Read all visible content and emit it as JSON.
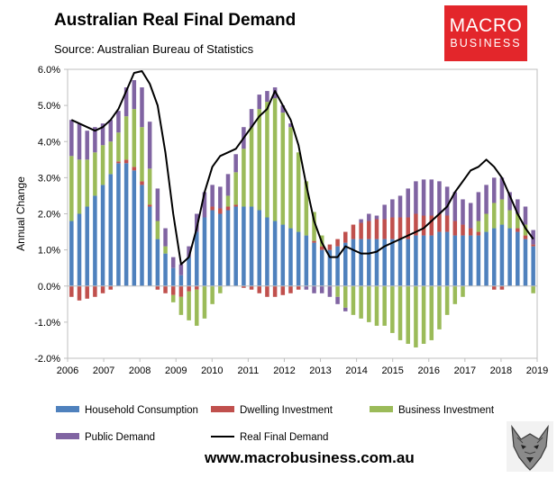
{
  "header": {
    "title": "Australian Real Final Demand",
    "subtitle": "Source: Australian Bureau of Statistics"
  },
  "logo": {
    "line1": "MACRO",
    "line2": "BUSINESS",
    "color": "#e3262b"
  },
  "footer": {
    "url": "www.macrobusiness.com.au"
  },
  "wolf_icon": "wolf-head-icon",
  "chart_data": {
    "type": "bar",
    "stacked": true,
    "title": "Australian Real Final Demand",
    "xlabel": "",
    "ylabel": "Annual Change",
    "ylim": [
      -2.0,
      6.0
    ],
    "yticks": [
      "-2.0%",
      "-1.0%",
      "0.0%",
      "1.0%",
      "2.0%",
      "3.0%",
      "4.0%",
      "5.0%",
      "6.0%"
    ],
    "xticks": [
      "2006",
      "2007",
      "2008",
      "2009",
      "2010",
      "2011",
      "2012",
      "2013",
      "2014",
      "2015",
      "2016",
      "2017",
      "2018",
      "2019"
    ],
    "x_start": 2006.0,
    "x_end": 2019.0,
    "grid": false,
    "legend_position": "bottom",
    "series": [
      {
        "name": "Household Consumption",
        "color": "#4f81bd",
        "kind": "bar",
        "values": [
          1.8,
          2.0,
          2.2,
          2.5,
          2.8,
          3.1,
          3.4,
          3.4,
          3.2,
          2.8,
          2.2,
          1.3,
          0.9,
          0.5,
          0.3,
          0.8,
          1.5,
          1.9,
          2.1,
          2.0,
          2.1,
          2.2,
          2.2,
          2.2,
          2.1,
          1.9,
          1.8,
          1.7,
          1.6,
          1.5,
          1.4,
          1.2,
          1.0,
          1.0,
          1.1,
          1.2,
          1.3,
          1.3,
          1.3,
          1.3,
          1.3,
          1.3,
          1.3,
          1.3,
          1.4,
          1.4,
          1.4,
          1.5,
          1.5,
          1.4,
          1.4,
          1.4,
          1.4,
          1.5,
          1.6,
          1.7,
          1.6,
          1.5,
          1.3,
          1.1
        ]
      },
      {
        "name": "Dwelling Investment",
        "color": "#c0504d",
        "kind": "bar",
        "values": [
          -0.3,
          -0.4,
          -0.35,
          -0.3,
          -0.2,
          -0.1,
          0.05,
          0.1,
          0.1,
          0.1,
          0.05,
          -0.1,
          -0.2,
          -0.25,
          -0.3,
          -0.15,
          -0.1,
          0.0,
          0.1,
          0.15,
          0.1,
          0.05,
          -0.05,
          -0.1,
          -0.2,
          -0.3,
          -0.3,
          -0.25,
          -0.2,
          -0.1,
          0.0,
          0.05,
          0.1,
          0.15,
          0.2,
          0.3,
          0.4,
          0.45,
          0.5,
          0.55,
          0.55,
          0.6,
          0.6,
          0.6,
          0.6,
          0.55,
          0.55,
          0.5,
          0.45,
          0.4,
          0.3,
          0.2,
          0.1,
          0.0,
          -0.1,
          -0.1,
          0.0,
          0.1,
          0.1,
          0.05
        ]
      },
      {
        "name": "Business Investment",
        "color": "#9bbb59",
        "kind": "bar",
        "values": [
          1.8,
          1.5,
          1.3,
          1.2,
          1.1,
          0.9,
          0.8,
          1.2,
          1.6,
          1.5,
          1.0,
          0.5,
          0.2,
          -0.2,
          -0.5,
          -0.8,
          -1.0,
          -0.9,
          -0.5,
          -0.2,
          0.3,
          0.9,
          1.6,
          2.2,
          2.8,
          3.2,
          3.4,
          3.1,
          2.8,
          2.2,
          1.5,
          0.8,
          0.3,
          0.0,
          -0.3,
          -0.6,
          -0.8,
          -0.9,
          -1.0,
          -1.1,
          -1.1,
          -1.3,
          -1.5,
          -1.6,
          -1.7,
          -1.6,
          -1.5,
          -1.2,
          -0.8,
          -0.5,
          -0.3,
          0.0,
          0.3,
          0.5,
          0.7,
          0.7,
          0.5,
          0.4,
          0.3,
          -0.2
        ]
      },
      {
        "name": "Public Demand",
        "color": "#8064a2",
        "kind": "bar",
        "values": [
          1.0,
          1.0,
          0.8,
          0.7,
          0.6,
          0.6,
          0.6,
          0.8,
          0.8,
          1.1,
          1.3,
          0.9,
          0.5,
          0.3,
          0.3,
          0.3,
          0.5,
          0.7,
          0.6,
          0.6,
          0.6,
          0.5,
          0.6,
          0.5,
          0.4,
          0.3,
          0.3,
          0.2,
          0.1,
          0.0,
          -0.1,
          -0.2,
          -0.2,
          -0.3,
          -0.2,
          -0.1,
          0.0,
          0.1,
          0.2,
          0.1,
          0.4,
          0.5,
          0.6,
          0.8,
          0.9,
          1.0,
          1.0,
          0.9,
          0.8,
          0.8,
          0.7,
          0.7,
          0.8,
          0.8,
          0.7,
          0.6,
          0.5,
          0.4,
          0.5,
          0.4
        ]
      },
      {
        "name": "Real Final Demand",
        "color": "#000000",
        "kind": "line",
        "values": [
          4.6,
          4.5,
          4.4,
          4.3,
          4.4,
          4.6,
          4.9,
          5.4,
          5.9,
          5.95,
          5.6,
          5.0,
          3.7,
          2.0,
          0.6,
          0.8,
          1.6,
          2.6,
          3.3,
          3.6,
          3.7,
          3.8,
          4.1,
          4.4,
          4.7,
          4.9,
          5.4,
          5.0,
          4.6,
          3.9,
          2.8,
          1.8,
          1.2,
          0.8,
          0.8,
          1.1,
          1.0,
          0.9,
          0.9,
          0.95,
          1.1,
          1.2,
          1.3,
          1.4,
          1.5,
          1.6,
          1.8,
          2.0,
          2.2,
          2.6,
          2.9,
          3.2,
          3.3,
          3.5,
          3.3,
          3.0,
          2.5,
          2.0,
          1.6,
          1.3
        ]
      }
    ]
  }
}
